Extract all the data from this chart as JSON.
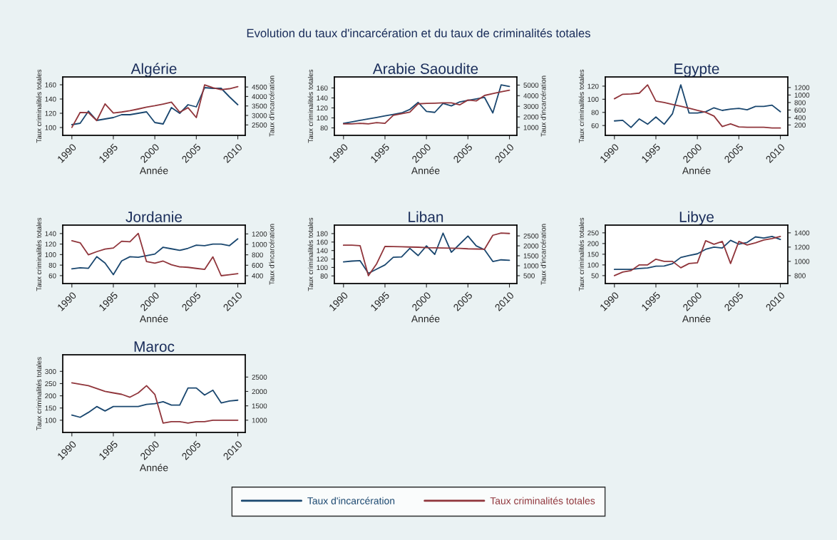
{
  "chart_data": [
    {
      "type": "line",
      "title": "Algérie",
      "xlabel": "Année",
      "ylabel": "Taux criminalités totales",
      "y2label": "Taux d'incarcération",
      "legend": "bottom",
      "annotations": [
        "Evolution du taux d'incarcération et du taux de criminalités totales"
      ],
      "x": [
        1990,
        1991,
        1992,
        1993,
        1994,
        1995,
        1996,
        1997,
        1998,
        1999,
        2000,
        2001,
        2002,
        2003,
        2004,
        2005,
        2006,
        2007,
        2008,
        2009,
        2010
      ],
      "series": [
        {
          "name": "Taux d'incarcération",
          "color": "#1a476f",
          "values": [
            104,
            106,
            123,
            110,
            112,
            114,
            118,
            118,
            120,
            122,
            107,
            105,
            128,
            120,
            132,
            129,
            156,
            155,
            155,
            143,
            132
          ]
        },
        {
          "name": "Taux criminalités totales",
          "color": "#90353b",
          "axis": "y2",
          "values": [
            2370,
            3160,
            3150,
            2730,
            3610,
            3130,
            3180,
            3250,
            3340,
            3440,
            3510,
            3600,
            3700,
            3170,
            3410,
            2890,
            4610,
            4460,
            4360,
            4410,
            4520
          ]
        }
      ],
      "xlim": [
        1988.9,
        2010.9
      ],
      "xticks": [
        1990,
        1995,
        2000,
        2005,
        2010
      ],
      "ylim": [
        89,
        171
      ],
      "yticks": [
        100,
        120,
        140,
        160
      ],
      "y2lim": [
        1950,
        5030
      ],
      "y2ticks": [
        2500,
        3000,
        3500,
        4000,
        4500
      ]
    },
    {
      "type": "line",
      "title": "Arabie Saoudite",
      "xlabel": "Année",
      "ylabel": "Taux criminalités totales",
      "y2label": "Taux d'incarcération",
      "x": [
        1990,
        1991,
        1992,
        1993,
        1994,
        1995,
        1996,
        1997,
        1998,
        1999,
        2000,
        2001,
        2002,
        2003,
        2004,
        2005,
        2006,
        2007,
        2008,
        2009,
        2010
      ],
      "series": [
        {
          "color": "#1a476f",
          "values": [
            89,
            92,
            95,
            98,
            101,
            104,
            107,
            110,
            117,
            131,
            113,
            111,
            129,
            124,
            132,
            135,
            138,
            141,
            110,
            166,
            163
          ]
        },
        {
          "color": "#90353b",
          "axis": "y2",
          "values": [
            1340,
            1340,
            1390,
            1340,
            1450,
            1390,
            2140,
            2290,
            2450,
            3230,
            3270,
            3290,
            3320,
            3320,
            3130,
            3590,
            3500,
            4020,
            4200,
            4360,
            4520
          ]
        }
      ],
      "xlim": [
        1988.9,
        2010.9
      ],
      "xticks": [
        1990,
        1995,
        2000,
        2005,
        2010
      ],
      "ylim": [
        65,
        182
      ],
      "yticks": [
        80,
        100,
        120,
        140,
        160
      ],
      "y2lim": [
        250,
        5770
      ],
      "y2ticks": [
        1000,
        2000,
        3000,
        4000,
        5000
      ]
    },
    {
      "type": "line",
      "title": "Egypte",
      "xlabel": "Année",
      "ylabel": "Taux criminalités totales",
      "x": [
        1990,
        1991,
        1992,
        1993,
        1994,
        1995,
        1996,
        1997,
        1998,
        1999,
        2000,
        2001,
        2002,
        2003,
        2004,
        2005,
        2006,
        2007,
        2008,
        2009,
        2010
      ],
      "series": [
        {
          "color": "#1a476f",
          "values": [
            67,
            68,
            57,
            70,
            62,
            73,
            62,
            78,
            122,
            79,
            79,
            81,
            87,
            83,
            85,
            86,
            84,
            89,
            89,
            91,
            81
          ]
        },
        {
          "color": "#90353b",
          "axis": "y2",
          "values": [
            900,
            1020,
            1030,
            1050,
            1270,
            840,
            800,
            750,
            700,
            650,
            590,
            540,
            440,
            160,
            230,
            150,
            140,
            140,
            140,
            120,
            120
          ]
        }
      ],
      "xlim": [
        1988.9,
        2010.9
      ],
      "xticks": [
        1990,
        1995,
        2000,
        2005,
        2010
      ],
      "ylim": [
        45,
        134
      ],
      "yticks": [
        60,
        80,
        100,
        120
      ],
      "y2lim": [
        -76,
        1482
      ],
      "y2ticks": [
        200,
        400,
        600,
        800,
        1000,
        1200
      ]
    },
    {
      "type": "line",
      "title": "Jordanie",
      "xlabel": "Année",
      "ylabel": "Taux criminalités totales",
      "y2label": "Taux d'incarcération",
      "x": [
        1990,
        1991,
        1992,
        1993,
        1994,
        1995,
        1996,
        1997,
        1998,
        1999,
        2000,
        2001,
        2002,
        2003,
        2004,
        2005,
        2006,
        2007,
        2008,
        2009,
        2010
      ],
      "series": [
        {
          "color": "#1a476f",
          "values": [
            73,
            75,
            74,
            96,
            84,
            62,
            88,
            96,
            95,
            98,
            101,
            114,
            111,
            108,
            112,
            118,
            117,
            120,
            120,
            117,
            130
          ]
        },
        {
          "color": "#90353b",
          "axis": "y2",
          "values": [
            1070,
            1030,
            800,
            860,
            910,
            930,
            1060,
            1050,
            1210,
            670,
            640,
            680,
            610,
            570,
            560,
            540,
            520,
            760,
            400,
            420,
            440
          ]
        }
      ],
      "xlim": [
        1988.9,
        2010.9
      ],
      "xticks": [
        1990,
        1995,
        2000,
        2005,
        2010
      ],
      "ylim": [
        45,
        156
      ],
      "yticks": [
        60,
        80,
        100,
        120,
        140
      ],
      "y2lim": [
        250,
        1368
      ],
      "y2ticks": [
        400,
        600,
        800,
        1000,
        1200
      ]
    },
    {
      "type": "line",
      "title": "Liban",
      "xlabel": "Année",
      "ylabel": "Taux criminalités totales",
      "y2label": "Taux d'incarcération",
      "x": [
        1990,
        1991,
        1992,
        1993,
        1994,
        1995,
        1996,
        1997,
        1998,
        1999,
        2000,
        2001,
        2002,
        2003,
        2004,
        2005,
        2006,
        2007,
        2008,
        2009,
        2010
      ],
      "series": [
        {
          "color": "#1a476f",
          "values": [
            113,
            115,
            116,
            86,
            96,
            106,
            124,
            125,
            145,
            128,
            151,
            131,
            181,
            136,
            155,
            174,
            151,
            142,
            114,
            118,
            117
          ]
        },
        {
          "color": "#90353b",
          "axis": "y2",
          "values": [
            2030,
            2030,
            2010,
            500,
            1100,
            1970,
            1960,
            1950,
            1940,
            1930,
            1910,
            1900,
            1890,
            1880,
            1870,
            1850,
            1840,
            1830,
            2530,
            2640,
            2620
          ]
        }
      ],
      "xlim": [
        1988.9,
        2010.9
      ],
      "xticks": [
        1990,
        1995,
        2000,
        2005,
        2010
      ],
      "ylim": [
        62,
        200
      ],
      "yticks": [
        80,
        100,
        120,
        140,
        160,
        180
      ],
      "y2lim": [
        105,
        3040
      ],
      "y2ticks": [
        500,
        1000,
        1500,
        2000,
        2500
      ]
    },
    {
      "type": "line",
      "title": "Libye",
      "xlabel": "Année",
      "ylabel": "Taux criminalités totales",
      "x": [
        1990,
        1991,
        1992,
        1993,
        1994,
        1995,
        1996,
        1997,
        1998,
        1999,
        2000,
        2001,
        2002,
        2003,
        2004,
        2005,
        2006,
        2007,
        2008,
        2009,
        2010
      ],
      "series": [
        {
          "color": "#1a476f",
          "values": [
            79,
            79,
            79,
            83,
            86,
            94,
            95,
            106,
            135,
            144,
            152,
            173,
            183,
            179,
            215,
            197,
            205,
            231,
            226,
            233,
            219
          ]
        },
        {
          "color": "#90353b",
          "axis": "y2",
          "values": [
            800,
            850,
            870,
            950,
            950,
            1030,
            1000,
            1000,
            910,
            970,
            980,
            1290,
            1240,
            1280,
            970,
            1280,
            1230,
            1260,
            1300,
            1320,
            1350
          ]
        }
      ],
      "xlim": [
        1988.9,
        2010.9
      ],
      "xticks": [
        1990,
        1995,
        2000,
        2005,
        2010
      ],
      "ylim": [
        13,
        286
      ],
      "yticks": [
        50,
        100,
        150,
        200,
        250
      ],
      "y2lim": [
        689,
        1508
      ],
      "y2ticks": [
        800,
        1000,
        1200,
        1400
      ]
    },
    {
      "type": "line",
      "title": "Maroc",
      "xlabel": "Année",
      "ylabel": "Taux criminalités totales",
      "x": [
        1990,
        1991,
        1992,
        1993,
        1994,
        1995,
        1996,
        1997,
        1998,
        1999,
        2000,
        2001,
        2002,
        2003,
        2004,
        2005,
        2006,
        2007,
        2008,
        2009,
        2010
      ],
      "series": [
        {
          "color": "#1a476f",
          "values": [
            121,
            112,
            132,
            156,
            138,
            156,
            156,
            156,
            156,
            165,
            168,
            176,
            162,
            162,
            232,
            232,
            203,
            223,
            171,
            179,
            182
          ]
        },
        {
          "color": "#90353b",
          "axis": "y2",
          "values": [
            2300,
            2250,
            2200,
            2100,
            2000,
            1950,
            1900,
            1800,
            1950,
            2200,
            1900,
            900,
            950,
            950,
            900,
            950,
            950,
            1000,
            1000,
            1000,
            1000
          ]
        }
      ],
      "xlim": [
        1988.9,
        2010.9
      ],
      "xticks": [
        1990,
        1995,
        2000,
        2005,
        2010
      ],
      "ylim": [
        50,
        368
      ],
      "yticks": [
        100,
        150,
        200,
        250,
        300
      ],
      "y2lim": [
        575,
        3275
      ],
      "y2ticks": [
        1000,
        1500,
        2000,
        2500
      ]
    }
  ]
}
